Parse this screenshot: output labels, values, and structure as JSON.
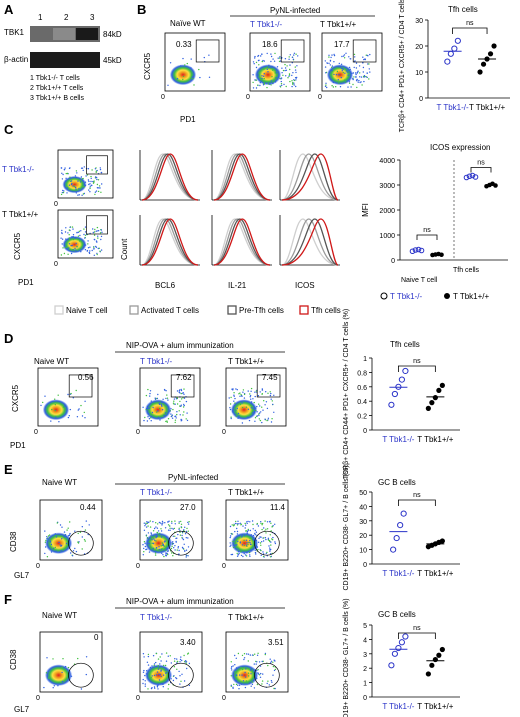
{
  "panels": {
    "A": {
      "label": "A",
      "lanes": [
        "1",
        "2",
        "3"
      ],
      "rows": [
        {
          "name": "TBK1",
          "kd": "84kD"
        },
        {
          "name": "β-actin",
          "kd": "45kD"
        }
      ],
      "legend": [
        "1 Tbk1-/- T cells",
        "2 Tbk1+/+ T cells",
        "3 Tbk1+/+ B cells"
      ]
    },
    "B": {
      "label": "B",
      "infection": "PyNL-infected",
      "groups": [
        "Naïve WT",
        "T Tbk1-/-",
        "T Tbk1+/+"
      ],
      "gates": [
        "0.33",
        "18.6",
        "17.7"
      ],
      "xaxis": "PD1",
      "yaxis": "CXCR5",
      "chart_title": "Tfh cells",
      "ylabel": "TCRβ+ CD4+ PD1+ CXCR5+ / CD4 T cells (%)",
      "sig": "ns"
    },
    "C": {
      "label": "C",
      "rowlabels": [
        "T Tbk1-/-",
        "T Tbk1+/+"
      ],
      "flow_x": "PD1",
      "flow_y": "CXCR5",
      "hist_x": [
        "BCL6",
        "IL-21",
        "ICOS"
      ],
      "hist_y": "Count",
      "legend": [
        "Naive T cell",
        "Activated T cells",
        "Pre-Tfh cells",
        "Tfh cells"
      ],
      "chart_title": "ICOS expression",
      "ylabel": "MFI",
      "groups": [
        "Naive T cell",
        "Tfh cells"
      ],
      "series_names": [
        "T Tbk1-/-",
        "T Tbk1+/+"
      ],
      "sig": [
        "ns",
        "ns"
      ]
    },
    "D": {
      "label": "D",
      "immunization": "NIP-OVA + alum immunization",
      "groups": [
        "Naive WT",
        "T Tbk1-/-",
        "T Tbk1+/+"
      ],
      "gates": [
        "0.56",
        "7.62",
        "7.45"
      ],
      "xaxis": "PD1",
      "yaxis": "CXCR5",
      "chart_title": "Tfh cells",
      "ylabel": "TCRβ+ CD4+ CD44+ PD1+ CXCR5+ / CD4 T cells (%)",
      "sig": "ns"
    },
    "E": {
      "label": "E",
      "infection": "PyNL-infected",
      "groups": [
        "Naive WT",
        "T Tbk1-/-",
        "T Tbk1+/+"
      ],
      "gates": [
        "0.44",
        "27.0",
        "11.4"
      ],
      "xaxis": "GL7",
      "yaxis": "CD38",
      "chart_title": "GC B cells",
      "ylabel": "CD19+ B220+ CD38- GL7+ / B cells (%)",
      "sig": "ns"
    },
    "F": {
      "label": "F",
      "immunization": "NIP-OVA + alum immunization",
      "groups": [
        "Naive WT",
        "T Tbk1-/-",
        "T Tbk1+/+"
      ],
      "gates": [
        "0",
        "3.40",
        "3.51"
      ],
      "xaxis": "GL7",
      "yaxis": "CD38",
      "chart_title": "GC B cells",
      "ylabel": "CD19+ B220+ CD38- GL7+ / B cells (%)",
      "sig": "ns"
    }
  },
  "colors": {
    "ko": "#2a33c8",
    "wt": "#000000",
    "tfh": "#d01818",
    "pretfh": "#555555",
    "activated": "#9a9a9a",
    "naive": "#cfcfcf"
  },
  "chart_data": [
    {
      "type": "scatter",
      "title": "Tfh cells",
      "ylabel": "TCRβ+ CD4+ PD1+ CXCR5+ / CD4 T cells (%)",
      "categories": [
        "T Tbk1-/-",
        "T Tbk1+/+"
      ],
      "ylim": [
        0,
        30
      ],
      "yticks": [
        0,
        10,
        20,
        30
      ],
      "series": [
        {
          "name": "T Tbk1-/-",
          "values": [
            14,
            17,
            19,
            22
          ]
        },
        {
          "name": "T Tbk1+/+",
          "values": [
            10,
            13,
            15,
            17,
            20
          ]
        }
      ]
    },
    {
      "type": "scatter",
      "title": "ICOS expression",
      "ylabel": "MFI",
      "categories": [
        "Naive T cell",
        "Tfh cells"
      ],
      "ylim": [
        0,
        4000
      ],
      "yticks": [
        0,
        1000,
        2000,
        3000,
        4000
      ],
      "series": [
        {
          "name": "T Tbk1-/-",
          "values": [
            [
              350,
              400,
              420,
              380
            ],
            [
              3300,
              3350,
              3380,
              3320
            ]
          ]
        },
        {
          "name": "T Tbk1+/+",
          "values": [
            [
              200,
              220,
              240,
              210
            ],
            [
              2950,
              3000,
              3050,
              2980
            ]
          ]
        }
      ]
    },
    {
      "type": "scatter",
      "title": "Tfh cells",
      "ylabel": "TCRβ+ CD4+ CD44+ PD1+ CXCR5+ / CD4 T cells (%)",
      "categories": [
        "T Tbk1-/-",
        "T Tbk1+/+"
      ],
      "ylim": [
        0,
        1.0
      ],
      "yticks": [
        0,
        0.2,
        0.4,
        0.6,
        0.8,
        1.0
      ],
      "series": [
        {
          "name": "T Tbk1-/-",
          "values": [
            0.35,
            0.5,
            0.6,
            0.7,
            0.82
          ]
        },
        {
          "name": "T Tbk1+/+",
          "values": [
            0.3,
            0.38,
            0.45,
            0.55,
            0.62
          ]
        }
      ]
    },
    {
      "type": "scatter",
      "title": "GC B cells",
      "ylabel": "CD19+ B220+ CD38- GL7+ / B cells (%)",
      "categories": [
        "T Tbk1-/-",
        "T Tbk1+/+"
      ],
      "ylim": [
        0,
        50
      ],
      "yticks": [
        0,
        10,
        20,
        30,
        40,
        50
      ],
      "series": [
        {
          "name": "T Tbk1-/-",
          "values": [
            10,
            18,
            27,
            35
          ]
        },
        {
          "name": "T Tbk1+/+",
          "values": [
            12,
            13,
            14,
            15,
            16
          ]
        }
      ]
    },
    {
      "type": "scatter",
      "title": "GC B cells",
      "ylabel": "CD19+ B220+ CD38- GL7+ / B cells (%)",
      "categories": [
        "T Tbk1-/-",
        "T Tbk1+/+"
      ],
      "ylim": [
        0,
        5
      ],
      "yticks": [
        0,
        1,
        2,
        3,
        4,
        5
      ],
      "series": [
        {
          "name": "T Tbk1-/-",
          "values": [
            2.2,
            3.0,
            3.4,
            3.8,
            4.2
          ]
        },
        {
          "name": "T Tbk1+/+",
          "values": [
            1.6,
            2.2,
            2.6,
            2.9,
            3.3
          ]
        }
      ]
    }
  ]
}
